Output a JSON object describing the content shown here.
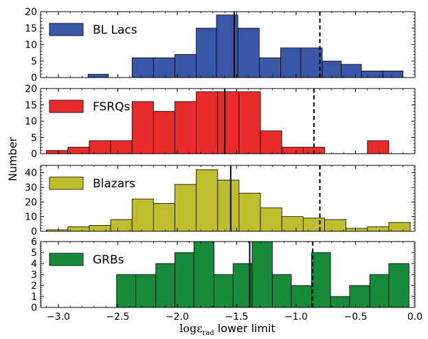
{
  "chart_data": {
    "type": "bar",
    "shared_x": {
      "label_math": "logε",
      "label_sub": "rad",
      "label_text": "lower limit",
      "xlim": [
        -3.15,
        0.0
      ],
      "ticks": [
        -3.0,
        -2.5,
        -2.0,
        -1.5,
        -1.0,
        -0.5,
        0.0
      ],
      "tick_labels": [
        "−3.0",
        "−2.5",
        "−2.0",
        "−1.5",
        "−1.0",
        "−0.5",
        "0.0"
      ]
    },
    "ylabel": "Number",
    "panels": [
      {
        "legend": "BL Lacs",
        "color": "#3a56a6",
        "ylim": [
          0,
          20
        ],
        "yticks": [
          0,
          5,
          10,
          15,
          20
        ],
        "ytick_labels": [
          "0",
          "5",
          "10",
          "15",
          "20"
        ],
        "bin_edges": [
          -2.75,
          -2.58,
          -2.38,
          -2.2,
          -2.02,
          -1.84,
          -1.67,
          -1.49,
          -1.31,
          -1.13,
          -0.96,
          -0.78,
          -0.62,
          -0.45,
          -0.27,
          -0.1
        ],
        "counts": [
          1,
          0,
          6,
          6,
          7,
          15,
          19,
          15,
          6,
          9,
          9,
          5,
          4,
          2,
          2
        ],
        "solid_line": -1.52,
        "dashed_line": -0.8
      },
      {
        "legend": "FSRQs",
        "color": "#e82b2b",
        "ylim": [
          0,
          20
        ],
        "yticks": [
          0,
          5,
          10,
          15,
          20
        ],
        "ytick_labels": [
          "0",
          "5",
          "10",
          "15",
          "20"
        ],
        "bin_edges": [
          -3.1,
          -2.92,
          -2.74,
          -2.56,
          -2.38,
          -2.2,
          -2.02,
          -1.84,
          -1.66,
          -1.48,
          -1.3,
          -1.12,
          -0.94,
          -0.76,
          -0.58,
          -0.4,
          -0.22,
          -0.04
        ],
        "counts": [
          1,
          2,
          4,
          4,
          16,
          13,
          16,
          19,
          19,
          19,
          7,
          2,
          2,
          0,
          0,
          4,
          0
        ],
        "solid_line": -1.6,
        "dashed_line": -0.85
      },
      {
        "legend": "Blazars",
        "color": "#bdbd2e",
        "ylim": [
          0,
          45
        ],
        "yticks": [
          0,
          10,
          20,
          30,
          40
        ],
        "ytick_labels": [
          "0",
          "10",
          "20",
          "30",
          "40"
        ],
        "bin_edges": [
          -3.1,
          -2.92,
          -2.74,
          -2.56,
          -2.38,
          -2.2,
          -2.02,
          -1.84,
          -1.66,
          -1.48,
          -1.3,
          -1.12,
          -0.94,
          -0.76,
          -0.58,
          -0.4,
          -0.22,
          -0.04
        ],
        "counts": [
          1,
          3,
          4,
          8,
          22,
          19,
          32,
          42,
          35,
          26,
          16,
          10,
          9,
          8,
          2,
          3,
          6
        ],
        "solid_line": -1.55,
        "dashed_line": -0.8
      },
      {
        "legend": "GRBs",
        "color": "#178a3b",
        "ylim": [
          0,
          6
        ],
        "yticks": [
          0,
          1,
          2,
          3,
          4,
          5,
          6
        ],
        "ytick_labels": [
          "0",
          "1",
          "2",
          "3",
          "4",
          "5",
          "6"
        ],
        "bin_edges": [
          -2.51,
          -2.35,
          -2.18,
          -2.02,
          -1.86,
          -1.69,
          -1.53,
          -1.37,
          -1.2,
          -1.04,
          -0.87,
          -0.71,
          -0.55,
          -0.38,
          -0.22,
          -0.05
        ],
        "counts": [
          3,
          3,
          4,
          5,
          6,
          3,
          4,
          6,
          3,
          2,
          5,
          1,
          2,
          3,
          4
        ],
        "solid_line": -1.39,
        "dashed_line": -0.86
      }
    ]
  }
}
